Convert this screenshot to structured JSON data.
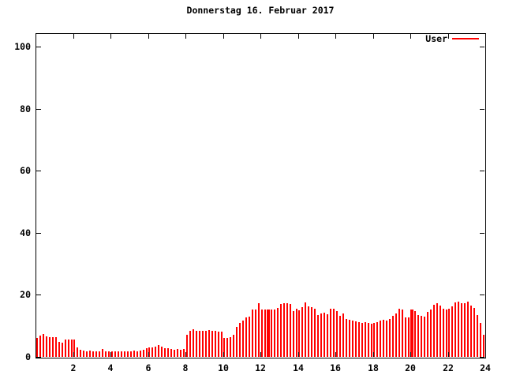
{
  "chart_data": {
    "type": "bar",
    "title": "Donnerstag 16. Februar 2017",
    "xlabel": "",
    "ylabel": "",
    "xlim": [
      0,
      24
    ],
    "ylim": [
      0,
      104.5
    ],
    "xticks": [
      2,
      4,
      6,
      8,
      10,
      12,
      14,
      16,
      18,
      20,
      22,
      24
    ],
    "yticks": [
      0,
      20,
      40,
      60,
      80,
      100
    ],
    "grid": false,
    "legend_position": "top-right-inside",
    "series": [
      {
        "name": "User",
        "color": "#ff0000",
        "style": "impulses",
        "start_minute": 5,
        "interval_minutes": 10,
        "values": [
          6.2,
          6.8,
          7.4,
          6.6,
          6.3,
          6.4,
          6.3,
          4.8,
          4.6,
          5.6,
          5.7,
          5.6,
          5.7,
          3.0,
          2.2,
          2.0,
          1.9,
          2.0,
          1.9,
          1.8,
          1.9,
          2.5,
          1.9,
          1.8,
          1.9,
          1.8,
          1.9,
          1.8,
          1.9,
          1.8,
          1.9,
          2.0,
          1.9,
          2.0,
          2.2,
          2.8,
          3.0,
          3.1,
          3.3,
          3.8,
          3.4,
          2.8,
          2.8,
          2.5,
          2.4,
          2.5,
          2.4,
          2.6,
          7.0,
          8.4,
          9.0,
          8.5,
          8.3,
          8.5,
          8.4,
          8.6,
          8.3,
          8.4,
          8.2,
          8.2,
          6.2,
          6.0,
          6.3,
          7.1,
          9.6,
          10.9,
          11.8,
          12.6,
          13.1,
          15.2,
          15.2,
          17.3,
          15.3,
          15.2,
          15.2,
          15.2,
          15.2,
          15.8,
          17.0,
          17.2,
          17.3,
          17.1,
          14.7,
          15.6,
          15.0,
          16.0,
          17.5,
          16.2,
          16.0,
          15.6,
          13.5,
          14.0,
          14.2,
          13.8,
          15.4,
          15.6,
          14.8,
          13.2,
          14.0,
          12.2,
          12.0,
          11.8,
          11.5,
          11.2,
          11.0,
          11.2,
          11.0,
          10.8,
          11.0,
          11.2,
          11.6,
          12.0,
          11.8,
          12.2,
          13.2,
          14.0,
          15.6,
          15.2,
          12.8,
          12.6,
          15.2,
          14.8,
          13.4,
          13.2,
          13.0,
          14.6,
          15.2,
          16.8,
          17.2,
          16.6,
          15.6,
          15.2,
          15.4,
          16.2,
          17.6,
          17.8,
          17.4,
          17.2,
          17.8,
          16.6,
          15.8,
          13.5,
          11.0,
          7.0
        ],
        "wide_bar_indices": [
          74,
          120
        ]
      }
    ]
  }
}
